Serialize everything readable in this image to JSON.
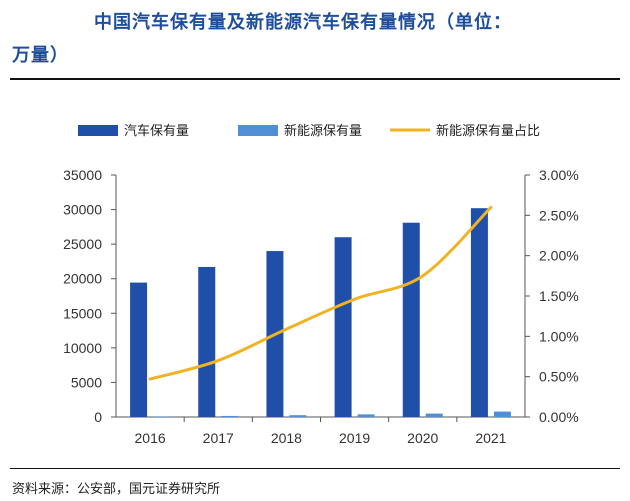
{
  "header": {
    "title_line1": "中国汽车保有量及新能源汽车保有量情况（单位：",
    "title_line2": "万量）"
  },
  "footer": {
    "source": "资料来源：公安部，国元证券研究所"
  },
  "chart_data": {
    "type": "bar",
    "categories": [
      "2016",
      "2017",
      "2018",
      "2019",
      "2020",
      "2021"
    ],
    "series": [
      {
        "name": "汽车保有量",
        "type": "bar",
        "axis": "left",
        "color": "#1f4fa8",
        "values": [
          19440,
          21700,
          24000,
          26000,
          28100,
          30200
        ]
      },
      {
        "name": "新能源保有量",
        "type": "bar",
        "axis": "left",
        "color": "#4f8fd6",
        "values": [
          91,
          153,
          261,
          381,
          492,
          784
        ]
      },
      {
        "name": "新能源保有量占比",
        "type": "line",
        "axis": "right",
        "color": "#f0b323",
        "values": [
          0.0047,
          0.007,
          0.0109,
          0.0146,
          0.0175,
          0.026
        ]
      }
    ],
    "y_left": {
      "ylim": [
        0,
        35000
      ],
      "ticks": [
        "0",
        "5000",
        "10000",
        "15000",
        "20000",
        "25000",
        "30000",
        "35000"
      ]
    },
    "y_right": {
      "ylim": [
        0,
        0.03
      ],
      "ticks": [
        "0.00%",
        "0.50%",
        "1.00%",
        "1.50%",
        "2.00%",
        "2.50%",
        "3.00%"
      ]
    },
    "legend_position": "top",
    "grid": false
  }
}
